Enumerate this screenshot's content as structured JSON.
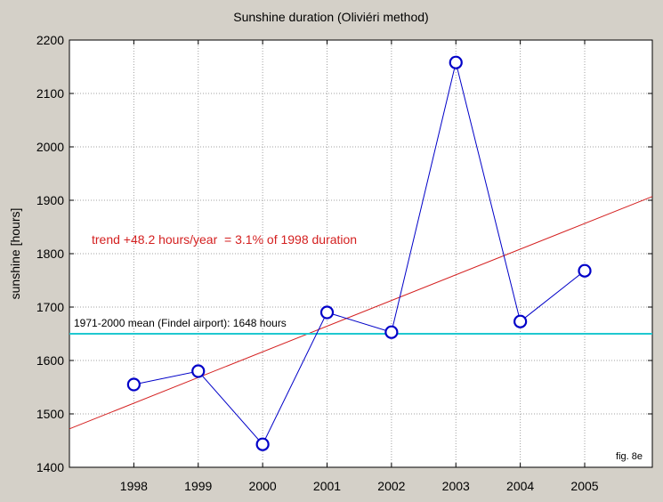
{
  "chart_data": {
    "type": "line",
    "title": "Sunshine duration (Oliviéri method)",
    "xlabel": "",
    "ylabel": "sunshine [hours]",
    "x": [
      1998,
      1999,
      2000,
      2001,
      2002,
      2003,
      2004,
      2005
    ],
    "xlim": [
      1997.0,
      2006.05
    ],
    "ylim": [
      1400,
      2200
    ],
    "yticks": [
      1400,
      1500,
      1600,
      1700,
      1800,
      1900,
      2000,
      2100,
      2200
    ],
    "xticks": [
      1998,
      1999,
      2000,
      2001,
      2002,
      2003,
      2004,
      2005
    ],
    "grid": true,
    "series": [
      {
        "values": [
          1555,
          1580,
          1443,
          1690,
          1653,
          2158,
          1673,
          1768
        ],
        "color": "#0000c8",
        "marker": "open-circle"
      }
    ],
    "trend_line": {
      "start": [
        1997.0,
        1472
      ],
      "end": [
        2006.05,
        1907
      ],
      "color": "#d42020",
      "label": "trend +48.2 hours/year  = 3.1% of 1998 duration"
    },
    "mean_line": {
      "value": 1650,
      "color": "#20c8d0",
      "label": "1971-2000 mean (Findel airport): 1648 hours"
    },
    "figure_label": "fig. 8e"
  }
}
